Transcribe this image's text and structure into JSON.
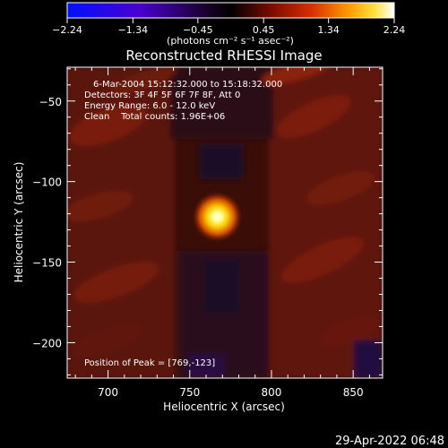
{
  "colorbar": {
    "min_label": "-2.24",
    "max_label": "2.24",
    "ticks": [
      "-2.24",
      "-1.34",
      "-0.45",
      "0.45",
      "1.34",
      "2.24"
    ],
    "unit_label": "(photons cm⁻² s⁻¹ asec⁻²)"
  },
  "info": {
    "time_range": "6-Mar-2004 15:12:32.000 to 15:18:32.000",
    "detectors": "Detectors: 3F 4F 5F 6F 7F 8F, Att 0",
    "energy": "Energy Range: 6.0 - 12.0 keV",
    "method_counts": "Clean    Total counts: 1.96E+06",
    "peak": "Position of Peak = [769,-123]"
  },
  "footer": {
    "date": "29-Apr-2022 06:48"
  },
  "chart_data": {
    "type": "heatmap",
    "title": "Reconstructed RHESSI Image",
    "xlabel": "Heliocentric X (arcsec)",
    "ylabel": "Heliocentric Y (arcsec)",
    "xlim": [
      675,
      868
    ],
    "ylim": [
      -222,
      -29
    ],
    "xticks": [
      700,
      750,
      800,
      850
    ],
    "yticks": [
      -50,
      -100,
      -150,
      -200
    ],
    "colorbar_range": [
      -2.24,
      2.24
    ],
    "colormap": [
      "#0000ff",
      "#6a00b0",
      "#000000",
      "#b01800",
      "#ff7a00",
      "#ffff60",
      "#ffffff"
    ],
    "peak": {
      "x": 769,
      "y": -123
    },
    "grid": false,
    "legend": "none"
  }
}
